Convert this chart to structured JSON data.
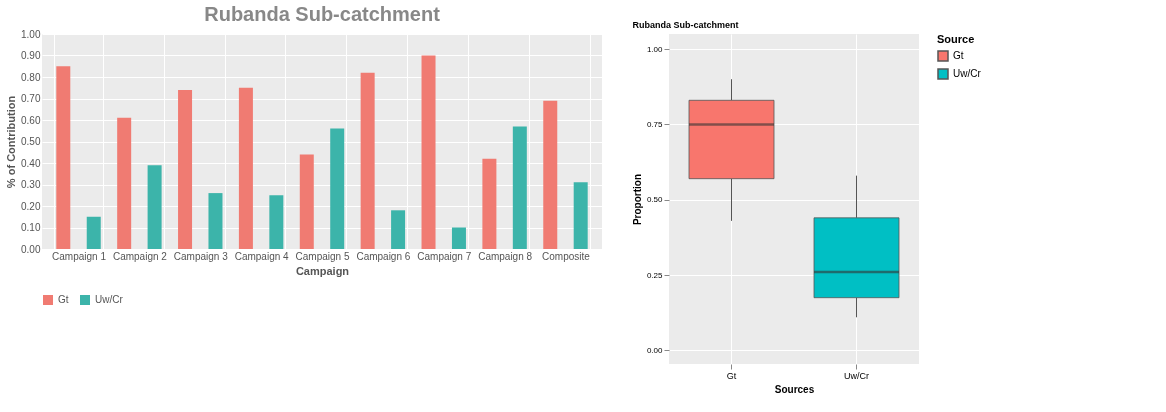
{
  "chart_data": [
    {
      "type": "bar",
      "title": "Rubanda Sub-catchment",
      "xlabel": "Campaign",
      "ylabel": "% of Contribution",
      "categories": [
        "Campaign 1",
        "Campaign 2",
        "Campaign 3",
        "Campaign 4",
        "Campaign 5",
        "Campaign 6",
        "Campaign 7",
        "Campaign 8",
        "Composite"
      ],
      "series": [
        {
          "name": "Gt",
          "color": "#f07b72",
          "values": [
            0.85,
            0.61,
            0.74,
            0.75,
            0.44,
            0.82,
            0.9,
            0.42,
            0.69
          ]
        },
        {
          "name": "Uw/Cr",
          "color": "#3cb4aa",
          "values": [
            0.15,
            0.39,
            0.26,
            0.25,
            0.56,
            0.18,
            0.1,
            0.57,
            0.31
          ]
        }
      ],
      "ylim": [
        0,
        1
      ],
      "yticks": [
        {
          "value": 0,
          "label": "0.00"
        },
        {
          "value": 0.1,
          "label": "0.10"
        },
        {
          "value": 0.2,
          "label": "0.20"
        },
        {
          "value": 0.3,
          "label": "0.30"
        },
        {
          "value": 0.4,
          "label": "0.40"
        },
        {
          "value": 0.5,
          "label": "0.50"
        },
        {
          "value": 0.6,
          "label": "0.60"
        },
        {
          "value": 0.7,
          "label": "0.70"
        },
        {
          "value": 0.8,
          "label": "0.80"
        },
        {
          "value": 0.9,
          "label": "0.90"
        },
        {
          "value": 1,
          "label": "1.00"
        }
      ],
      "grid": true,
      "legend": "bottom"
    },
    {
      "type": "box",
      "title": "Rubanda Sub-catchment",
      "xlabel": "Sources",
      "ylabel": "Proportion",
      "legend_title": "Source",
      "categories": [
        "Gt",
        "Uw/Cr"
      ],
      "series": [
        {
          "name": "Gt",
          "color": "#f8766d",
          "boxes": [
            {
              "low": 0.43,
              "q1": 0.57,
              "median": 0.75,
              "q3": 0.83,
              "high": 0.9
            },
            null
          ]
        },
        {
          "name": "Uw/Cr",
          "color": "#00bfc4",
          "boxes": [
            null,
            {
              "low": 0.11,
              "q1": 0.175,
              "median": 0.26,
              "q3": 0.44,
              "high": 0.58
            }
          ]
        }
      ],
      "ylim": [
        -0.045,
        1.05
      ],
      "yticks": [
        {
          "value": 0,
          "label": "0.00"
        },
        {
          "value": 0.25,
          "label": "0.25"
        },
        {
          "value": 0.5,
          "label": "0.50"
        },
        {
          "value": 0.75,
          "label": "0.75"
        },
        {
          "value": 1,
          "label": "1.00"
        }
      ],
      "grid": true,
      "legend": "right"
    }
  ]
}
